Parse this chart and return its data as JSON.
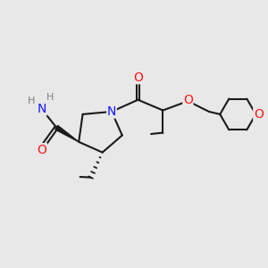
{
  "background_color": "#e8e8e8",
  "bond_color": "#1a1a1a",
  "bond_width": 1.5,
  "atom_colors": {
    "N": "#1414ff",
    "O": "#ff1414",
    "H_label": "#808080"
  },
  "font_size_atom": 10,
  "font_size_H": 8,
  "xlim": [
    0,
    10
  ],
  "ylim": [
    0,
    10
  ],
  "figsize": [
    3.0,
    3.0
  ],
  "dpi": 100
}
